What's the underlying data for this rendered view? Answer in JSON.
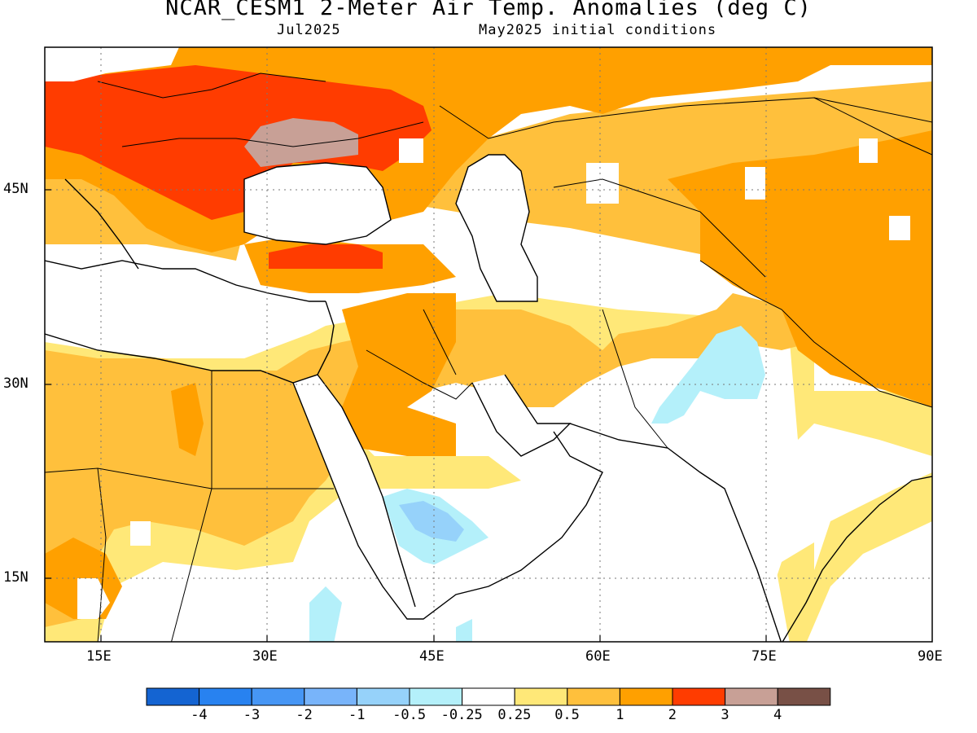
{
  "header": {
    "title": "NCAR_CESM1 2-Meter Air Temp. Anomalies (deg C)",
    "valid_month": "Jul2025",
    "init": "May2025 initial conditions"
  },
  "map": {
    "lon_range": [
      10,
      90
    ],
    "lat_range": [
      10,
      55
    ],
    "lon_ticks": [
      "15E",
      "30E",
      "45E",
      "60E",
      "75E",
      "90E"
    ],
    "lat_ticks": [
      "45N",
      "30N",
      "15N"
    ],
    "gridlines": "dotted"
  },
  "colorbar": {
    "labels": [
      "-4",
      "-3",
      "-2",
      "-1",
      "-0.5",
      "-0.25",
      "0.25",
      "0.5",
      "1",
      "2",
      "3",
      "4"
    ],
    "colors": [
      "#1464d2",
      "#2882f0",
      "#4696f5",
      "#78b4fa",
      "#96d2fa",
      "#b4f0fa",
      "#ffffff",
      "#ffe878",
      "#ffc03c",
      "#ffa000",
      "#ff3c00",
      "#c8a096",
      "#785046"
    ]
  },
  "anomaly_regions": [
    {
      "category": "0.5 to 1",
      "color": "#ffc03c",
      "description_area": "North Africa"
    },
    {
      "category": "1 to 2",
      "color": "#ffa000",
      "description_area": "Russia / Central Asia"
    },
    {
      "category": "2 to 3",
      "color": "#ff3c00",
      "description_area": "Eastern Europe / Turkey"
    },
    {
      "category": "3 to 4",
      "color": "#c8a096",
      "description_area": "Ukraine"
    },
    {
      "category": "-0.5 to -0.25",
      "color": "#b4f0fa",
      "description_area": "Pakistan / Arabia"
    },
    {
      "category": "-1 to -0.5",
      "color": "#96d2fa",
      "description_area": "Arabia"
    }
  ]
}
